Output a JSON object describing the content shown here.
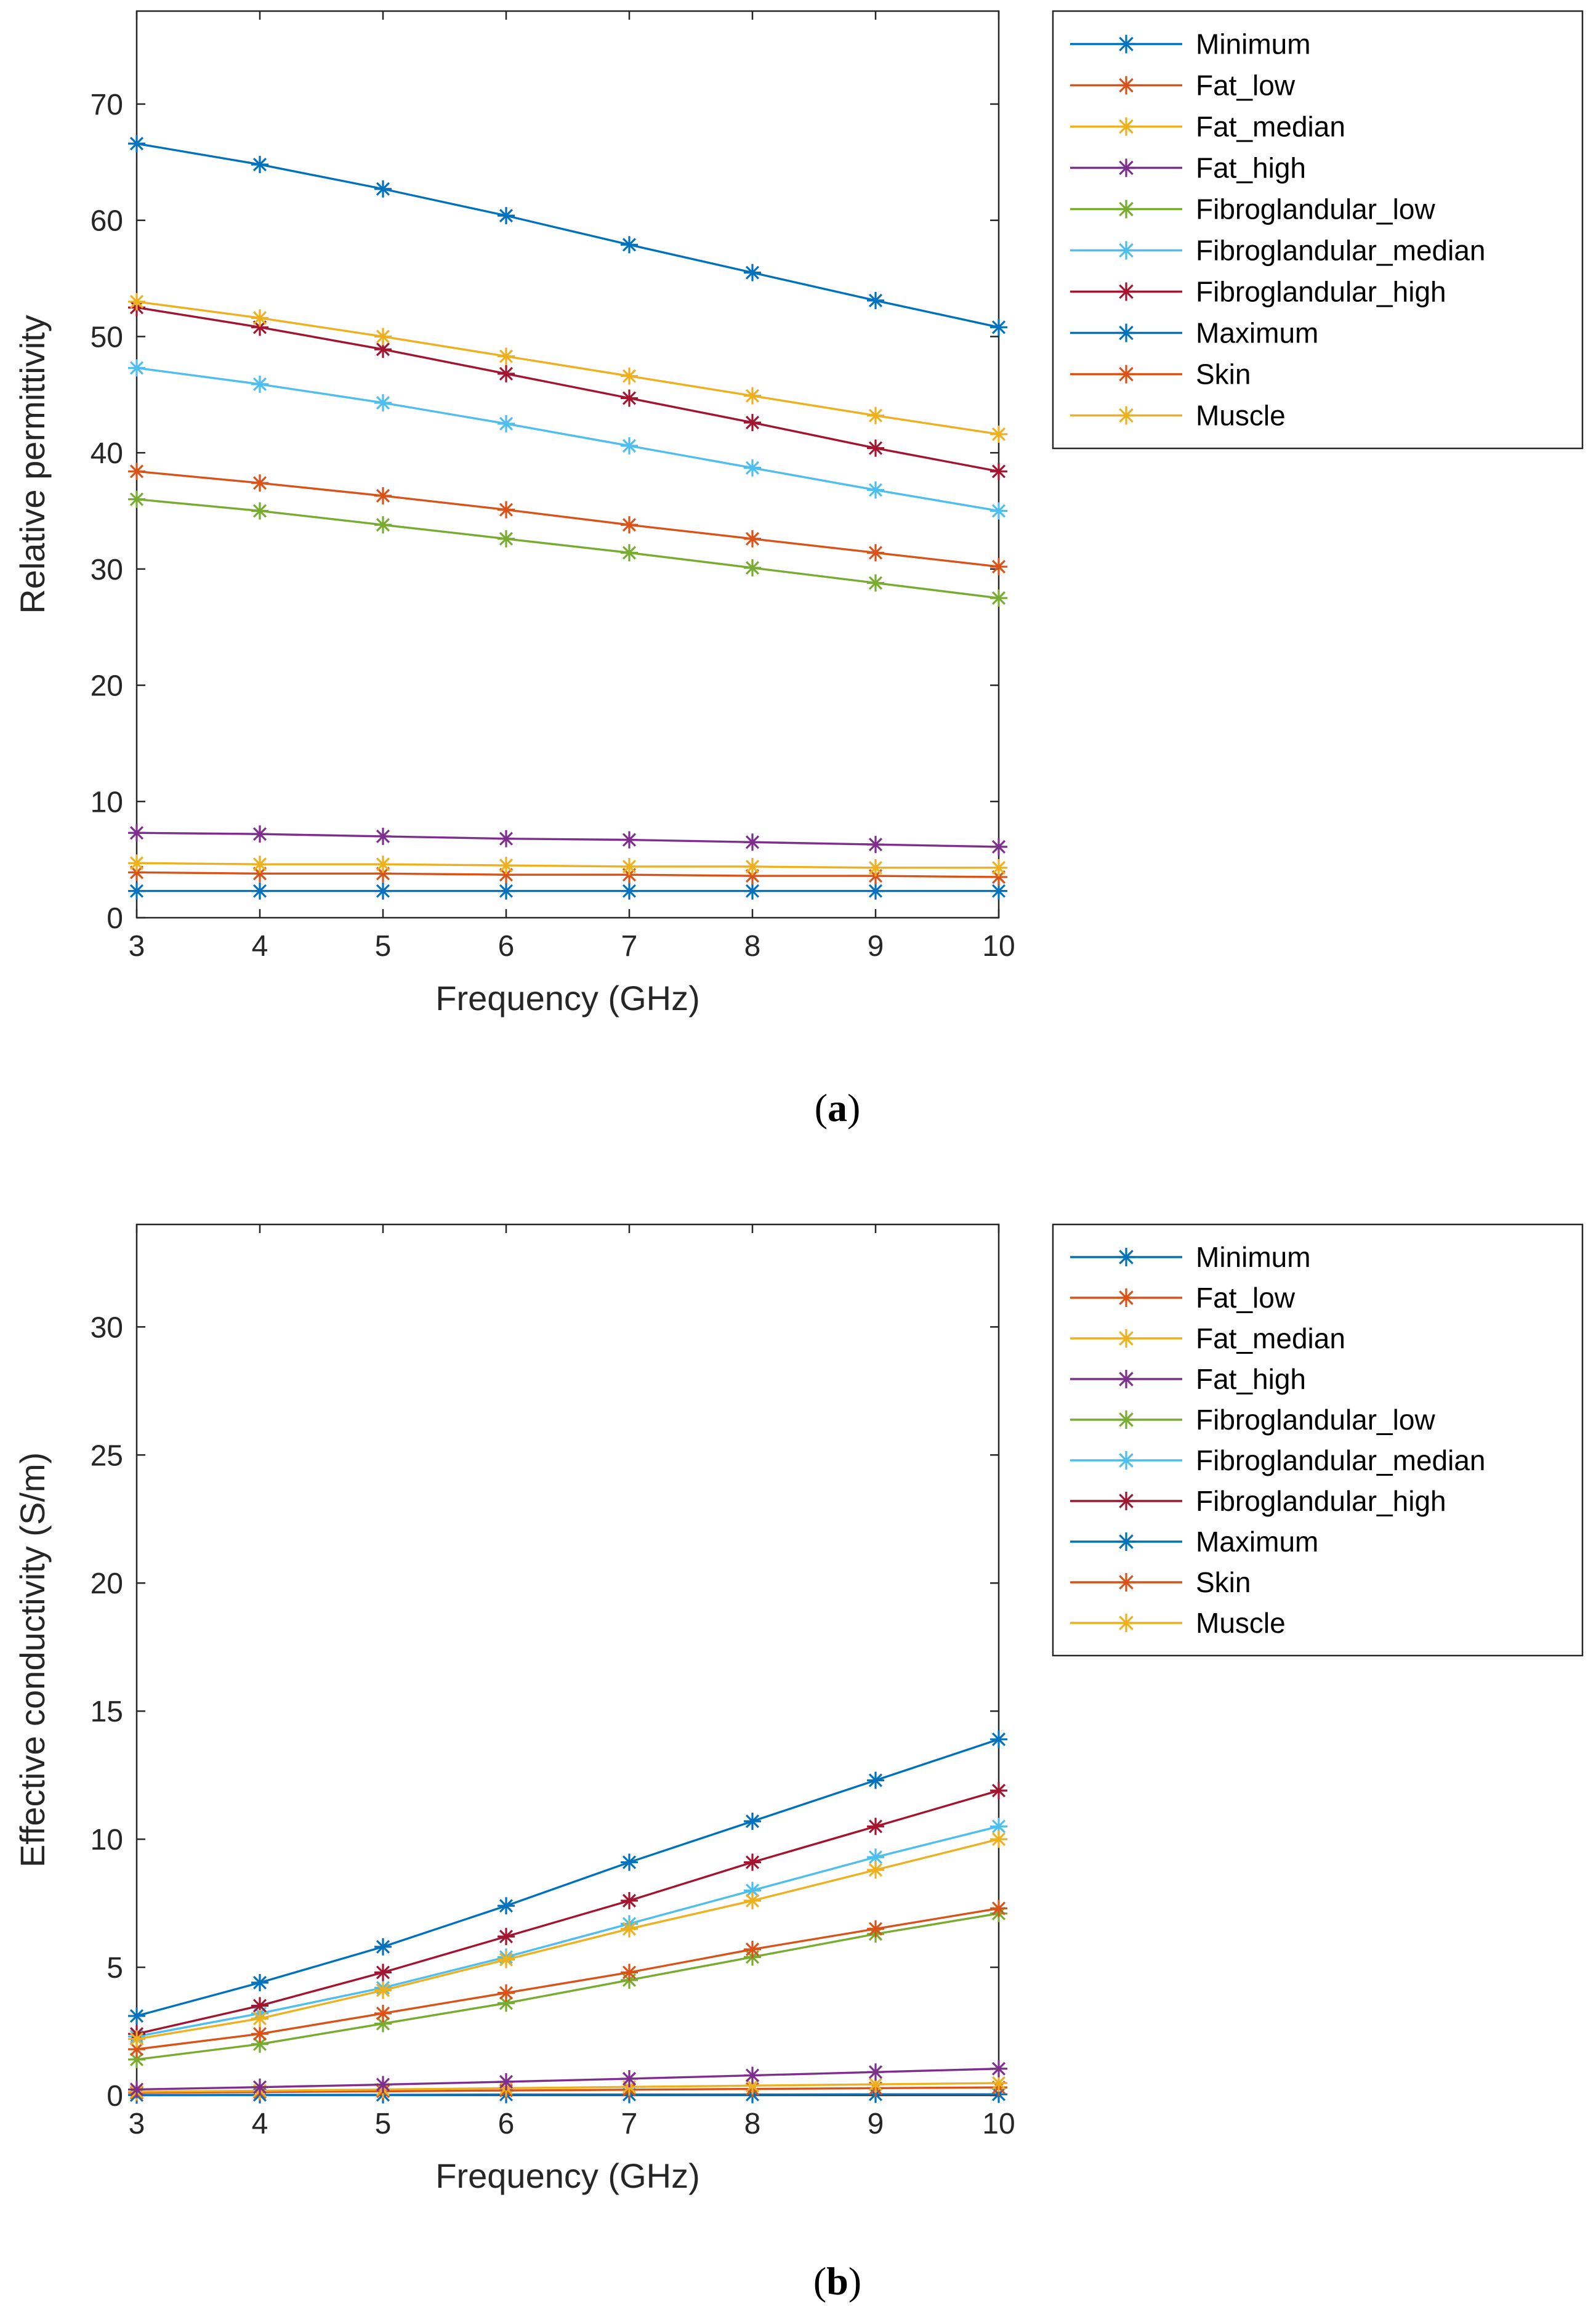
{
  "colors": {
    "Minimum": "#0072BD",
    "Fat_low": "#D95319",
    "Fat_median": "#EDB120",
    "Fat_high": "#7E2F8E",
    "Fibroglandular_low": "#77AC30",
    "Fibroglandular_median": "#4DBEEE",
    "Fibroglandular_high": "#A2142F",
    "Maximum": "#0072BD",
    "Skin": "#D95319",
    "Muscle": "#EDB120"
  },
  "chart_data": [
    {
      "type": "line",
      "panel": "a",
      "caption_letter": "a",
      "title": "",
      "xlabel": "Frequency (GHz)",
      "ylabel": "Relative permittivity",
      "xlim": [
        3,
        10
      ],
      "ylim": [
        0,
        78
      ],
      "xticks": [
        "3",
        "4",
        "5",
        "6",
        "7",
        "8",
        "9",
        "10"
      ],
      "yticks": [
        "0",
        "10",
        "20",
        "30",
        "40",
        "50",
        "60",
        "70"
      ],
      "x": [
        3,
        4,
        5,
        6,
        7,
        8,
        9,
        10
      ],
      "legend_position": "outside-right",
      "series": [
        {
          "name": "Minimum",
          "values": [
            2.3,
            2.3,
            2.3,
            2.3,
            2.3,
            2.3,
            2.3,
            2.3
          ]
        },
        {
          "name": "Fat_low",
          "values": [
            3.9,
            3.8,
            3.8,
            3.7,
            3.7,
            3.6,
            3.6,
            3.5
          ]
        },
        {
          "name": "Fat_median",
          "values": [
            4.7,
            4.6,
            4.6,
            4.5,
            4.4,
            4.4,
            4.3,
            4.3
          ]
        },
        {
          "name": "Fat_high",
          "values": [
            7.3,
            7.2,
            7.0,
            6.8,
            6.7,
            6.5,
            6.3,
            6.1
          ]
        },
        {
          "name": "Fibroglandular_low",
          "values": [
            36.0,
            35.0,
            33.8,
            32.6,
            31.4,
            30.1,
            28.8,
            27.5
          ]
        },
        {
          "name": "Fibroglandular_median",
          "values": [
            47.3,
            45.9,
            44.3,
            42.5,
            40.6,
            38.7,
            36.8,
            35.0
          ]
        },
        {
          "name": "Fibroglandular_high",
          "values": [
            52.5,
            50.8,
            48.9,
            46.8,
            44.7,
            42.6,
            40.4,
            38.4
          ]
        },
        {
          "name": "Maximum",
          "values": [
            66.6,
            64.8,
            62.7,
            60.4,
            57.9,
            55.5,
            53.1,
            50.8
          ]
        },
        {
          "name": "Skin",
          "values": [
            38.4,
            37.4,
            36.3,
            35.1,
            33.8,
            32.6,
            31.4,
            30.2
          ]
        },
        {
          "name": "Muscle",
          "values": [
            53.0,
            51.6,
            50.0,
            48.3,
            46.6,
            44.9,
            43.2,
            41.6
          ]
        }
      ]
    },
    {
      "type": "line",
      "panel": "b",
      "caption_letter": "b",
      "title": "",
      "xlabel": "Frequency (GHz)",
      "ylabel": "Effective conductivity (S/m)",
      "xlim": [
        3,
        10
      ],
      "ylim": [
        0,
        34
      ],
      "xticks": [
        "3",
        "4",
        "5",
        "6",
        "7",
        "8",
        "9",
        "10"
      ],
      "yticks": [
        "0",
        "5",
        "10",
        "15",
        "20",
        "25",
        "30"
      ],
      "x": [
        3,
        4,
        5,
        6,
        7,
        8,
        9,
        10
      ],
      "legend_position": "outside-right",
      "series": [
        {
          "name": "Minimum",
          "values": [
            0.01,
            0.02,
            0.02,
            0.03,
            0.03,
            0.03,
            0.04,
            0.04
          ]
        },
        {
          "name": "Fat_low",
          "values": [
            0.1,
            0.13,
            0.16,
            0.19,
            0.22,
            0.25,
            0.28,
            0.31
          ]
        },
        {
          "name": "Fat_median",
          "values": [
            0.14,
            0.18,
            0.23,
            0.28,
            0.33,
            0.38,
            0.43,
            0.48
          ]
        },
        {
          "name": "Fat_high",
          "values": [
            0.23,
            0.32,
            0.42,
            0.53,
            0.65,
            0.78,
            0.91,
            1.04
          ]
        },
        {
          "name": "Fibroglandular_low",
          "values": [
            1.4,
            2.0,
            2.8,
            3.6,
            4.5,
            5.4,
            6.3,
            7.1
          ]
        },
        {
          "name": "Fibroglandular_median",
          "values": [
            2.3,
            3.2,
            4.2,
            5.4,
            6.7,
            8.0,
            9.3,
            10.5
          ]
        },
        {
          "name": "Fibroglandular_high",
          "values": [
            2.4,
            3.5,
            4.8,
            6.2,
            7.6,
            9.1,
            10.5,
            11.9
          ]
        },
        {
          "name": "Maximum",
          "values": [
            3.1,
            4.4,
            5.8,
            7.4,
            9.1,
            10.7,
            12.3,
            13.9
          ]
        },
        {
          "name": "Skin",
          "values": [
            1.8,
            2.4,
            3.2,
            4.0,
            4.8,
            5.7,
            6.5,
            7.3
          ]
        },
        {
          "name": "Muscle",
          "values": [
            2.2,
            3.0,
            4.1,
            5.3,
            6.5,
            7.6,
            8.8,
            10.0
          ]
        }
      ]
    }
  ]
}
